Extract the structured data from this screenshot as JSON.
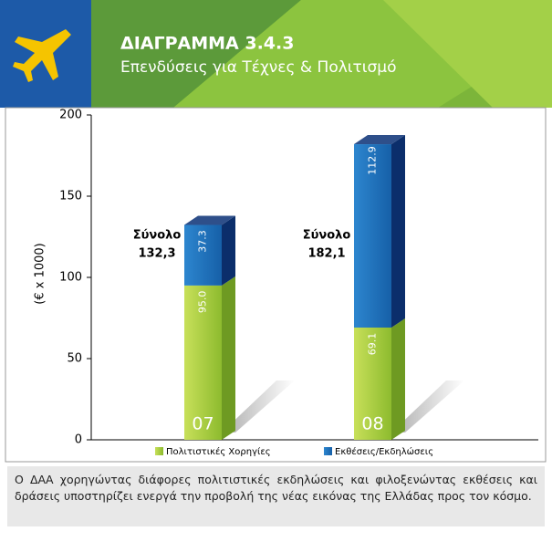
{
  "header": {
    "title": "ΔΙΑΓΡΑΜΜΑ 3.4.3",
    "subtitle": "Επενδύσεις για Τέχνες & Πολιτισμό"
  },
  "chart_data": {
    "type": "bar3d_stacked",
    "ylabel": "(€ x 1000)",
    "categories": [
      "07",
      "08"
    ],
    "series": [
      {
        "name": "Πολιτιστικές Χορηγίες",
        "color": "#9cc83c",
        "values": [
          95.0,
          69.1
        ],
        "value_labels": [
          "95.0",
          "69.1"
        ]
      },
      {
        "name": "Εκθέσεις/Εκδηλώσεις",
        "color": "#1e6fb8",
        "values": [
          37.3,
          112.9
        ],
        "value_labels": [
          "37.3",
          "112.9"
        ]
      }
    ],
    "total_title": "Σύνολο",
    "totals": [
      132.3,
      182.1
    ],
    "total_labels": [
      "132,3",
      "182,1"
    ],
    "ylim": [
      0,
      200
    ],
    "yticks": [
      0,
      50,
      100,
      150,
      200
    ]
  },
  "caption": "Ο ΔΑΑ χορηγώντας διάφορες πολιτιστικές εκδηλώσεις και φιλοξενώντας εκθέσεις και δράσεις υποστηρίζει ενεργά την προβολή της νέας εικόνας της Ελλάδας προς τον κόσμο."
}
